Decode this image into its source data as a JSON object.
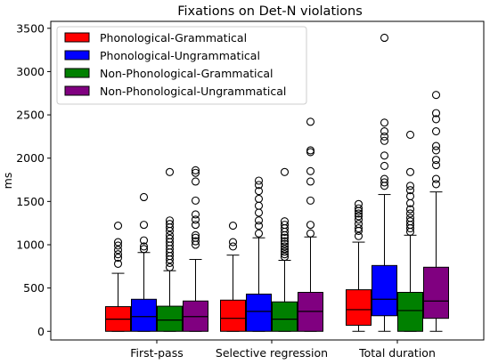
{
  "chart_data": {
    "type": "box",
    "title": "Fixations on Det-N violations",
    "xlabel": "",
    "ylabel": "ms",
    "ylim": [
      -100,
      3580
    ],
    "yticks": [
      0,
      500,
      1000,
      1500,
      2000,
      2500,
      3000,
      3500
    ],
    "categories": [
      "First-pass",
      "Selective regression",
      "Total duration"
    ],
    "legend_position": "upper-left",
    "grid": false,
    "series": [
      {
        "name": "Phonological-Grammatical",
        "color": "#ff0000",
        "boxes": [
          {
            "min": 0,
            "q1": 0,
            "median": 140,
            "q3": 285,
            "max": 670,
            "outliers": [
              780,
              850,
              890,
              940,
              990,
              1030,
              1220
            ]
          },
          {
            "min": 0,
            "q1": 0,
            "median": 150,
            "q3": 360,
            "max": 880,
            "outliers": [
              980,
              1030,
              1220
            ]
          },
          {
            "min": 0,
            "q1": 70,
            "median": 250,
            "q3": 480,
            "max": 1030,
            "outliers": [
              1100,
              1160,
              1190,
              1240,
              1290,
              1330,
              1360,
              1390,
              1420,
              1470
            ]
          }
        ]
      },
      {
        "name": "Phonological-Ungrammatical",
        "color": "#0000ff",
        "boxes": [
          {
            "min": 0,
            "q1": 0,
            "median": 170,
            "q3": 370,
            "max": 910,
            "outliers": [
              950,
              980,
              1050,
              1230,
              1550
            ]
          },
          {
            "min": 0,
            "q1": 0,
            "median": 230,
            "q3": 430,
            "max": 1080,
            "outliers": [
              1130,
              1220,
              1280,
              1370,
              1450,
              1530,
              1620,
              1690,
              1740
            ]
          },
          {
            "min": 0,
            "q1": 180,
            "median": 370,
            "q3": 760,
            "max": 1580,
            "outliers": [
              1680,
              1720,
              1760,
              1910,
              2030,
              2200,
              2250,
              2310,
              2410,
              3390
            ]
          }
        ]
      },
      {
        "name": "Non-Phonological-Grammatical",
        "color": "#008000",
        "boxes": [
          {
            "min": 0,
            "q1": 0,
            "median": 130,
            "q3": 290,
            "max": 700,
            "outliers": [
              740,
              790,
              830,
              870,
              910,
              950,
              990,
              1030,
              1070,
              1110,
              1160,
              1200,
              1240,
              1280,
              1840
            ]
          },
          {
            "min": 0,
            "q1": 0,
            "median": 140,
            "q3": 340,
            "max": 820,
            "outliers": [
              860,
              890,
              920,
              950,
              980,
              1010,
              1040,
              1080,
              1110,
              1150,
              1190,
              1230,
              1270,
              1840
            ]
          },
          {
            "min": 0,
            "q1": 0,
            "median": 240,
            "q3": 450,
            "max": 1110,
            "outliers": [
              1150,
              1190,
              1230,
              1270,
              1310,
              1360,
              1410,
              1480,
              1560,
              1630,
              1680,
              1840,
              2270
            ]
          }
        ]
      },
      {
        "name": "Non-Phonological-Ungrammatical",
        "color": "#800080",
        "boxes": [
          {
            "min": 0,
            "q1": 0,
            "median": 170,
            "q3": 350,
            "max": 830,
            "outliers": [
              1000,
              1040,
              1080,
              1110,
              1230,
              1290,
              1350,
              1510,
              1730,
              1830,
              1860
            ]
          },
          {
            "min": 0,
            "q1": 0,
            "median": 230,
            "q3": 450,
            "max": 1090,
            "outliers": [
              1130,
              1230,
              1510,
              1730,
              1850,
              2070,
              2090,
              2420
            ]
          },
          {
            "min": 0,
            "q1": 150,
            "median": 350,
            "q3": 740,
            "max": 1610,
            "outliers": [
              1700,
              1760,
              1920,
              1980,
              2090,
              2140,
              2310,
              2450,
              2520,
              2730
            ]
          }
        ]
      }
    ]
  }
}
